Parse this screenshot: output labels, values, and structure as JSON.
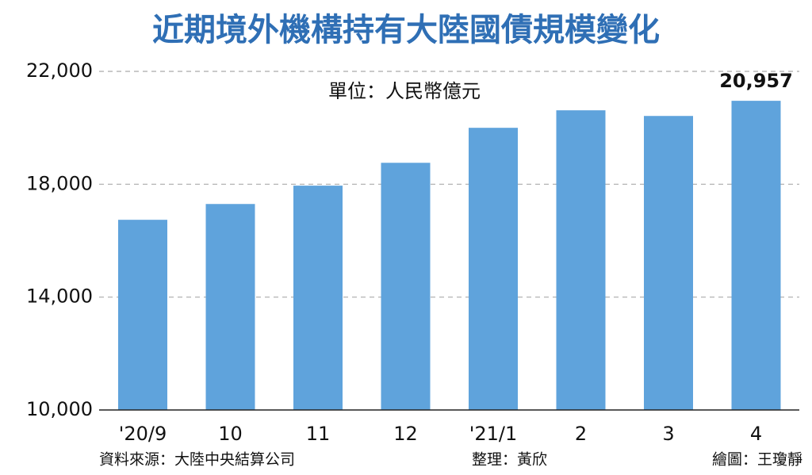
{
  "chart_data": {
    "type": "bar",
    "title": "近期境外機構持有大陸國債規模變化",
    "subtitle": "單位：人民幣億元",
    "categories": [
      "'20/9",
      "10",
      "11",
      "12",
      "'21/1",
      "2",
      "3",
      "4"
    ],
    "values": [
      16740,
      17300,
      17950,
      18760,
      20000,
      20620,
      20420,
      20957
    ],
    "value_labels": [
      null,
      null,
      null,
      null,
      null,
      null,
      null,
      "20,957"
    ],
    "color": "#5fa3dc",
    "ylim": [
      10000,
      22000
    ],
    "yticks": [
      {
        "value": 10000,
        "label": "10,000"
      },
      {
        "value": 14000,
        "label": "14,000"
      },
      {
        "value": 18000,
        "label": "18,000"
      },
      {
        "value": 22000,
        "label": "22,000"
      }
    ],
    "grid": true,
    "source": "資料來源：大陸中央結算公司",
    "editor": "整理：黃欣",
    "illustrator": "繪圖：王瓊靜"
  }
}
